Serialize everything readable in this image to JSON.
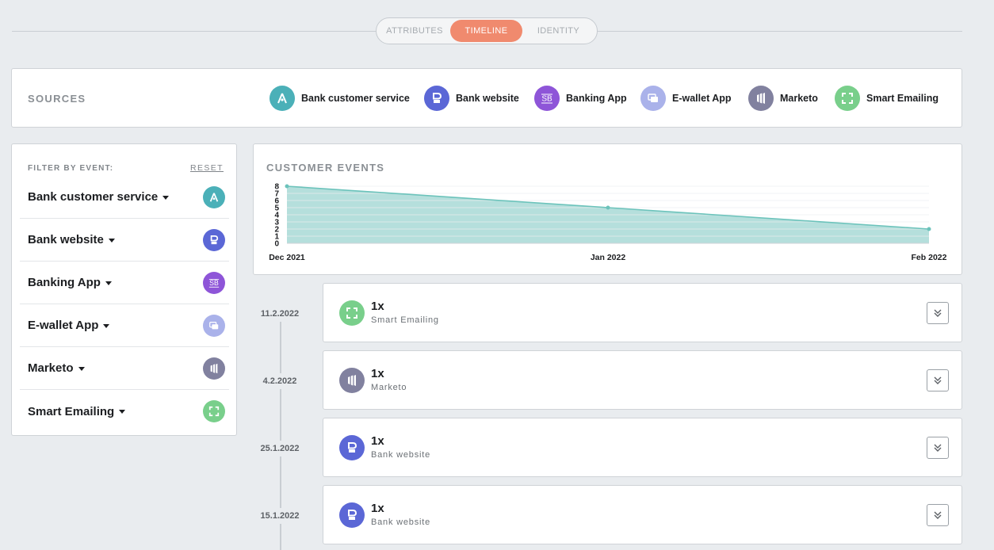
{
  "tabs": [
    {
      "label": "ATTRIBUTES",
      "active": false
    },
    {
      "label": "TIMELINE",
      "active": true
    },
    {
      "label": "IDENTITY",
      "active": false
    }
  ],
  "sources": {
    "title": "SOURCES",
    "items": [
      {
        "label": "Bank customer service",
        "icon": "bank-customer-service-icon",
        "color": "#4bb0b8"
      },
      {
        "label": "Bank website",
        "icon": "bank-website-icon",
        "color": "#5b67d6"
      },
      {
        "label": "Banking App",
        "icon": "banking-app-icon",
        "color": "#8e55d8"
      },
      {
        "label": "E-wallet App",
        "icon": "ewallet-app-icon",
        "color": "#aab2ea"
      },
      {
        "label": "Marketo",
        "icon": "marketo-icon",
        "color": "#81819f"
      },
      {
        "label": "Smart Emailing",
        "icon": "smart-emailing-icon",
        "color": "#79cf8b"
      }
    ]
  },
  "filter": {
    "title": "FILTER BY EVENT:",
    "reset": "RESET",
    "items": [
      {
        "label": "Bank customer service"
      },
      {
        "label": "Bank website"
      },
      {
        "label": "Banking App"
      },
      {
        "label": "E-wallet App"
      },
      {
        "label": "Marketo"
      },
      {
        "label": "Smart Emailing"
      }
    ]
  },
  "chart": {
    "title": "CUSTOMER EVENTS"
  },
  "chart_data": {
    "type": "area",
    "title": "CUSTOMER EVENTS",
    "x": [
      "Dec 2021",
      "Jan 2022",
      "Feb 2022"
    ],
    "series": [
      {
        "values": [
          8,
          5,
          2
        ]
      }
    ],
    "ylim": [
      0,
      8
    ],
    "yticks": [
      0,
      1,
      2,
      3,
      4,
      5,
      6,
      7,
      8
    ],
    "grid": true,
    "fill_color": "#b5dfdc",
    "line_color": "#6cc3bb"
  },
  "timeline": [
    {
      "date": "11.2.2022",
      "count": "1x",
      "source": "Smart Emailing",
      "icon": "smart-emailing-icon"
    },
    {
      "date": "4.2.2022",
      "count": "1x",
      "source": "Marketo",
      "icon": "marketo-icon"
    },
    {
      "date": "25.1.2022",
      "count": "1x",
      "source": "Bank website",
      "icon": "bank-website-icon"
    },
    {
      "date": "15.1.2022",
      "count": "1x",
      "source": "Bank website",
      "icon": "bank-website-icon"
    }
  ]
}
